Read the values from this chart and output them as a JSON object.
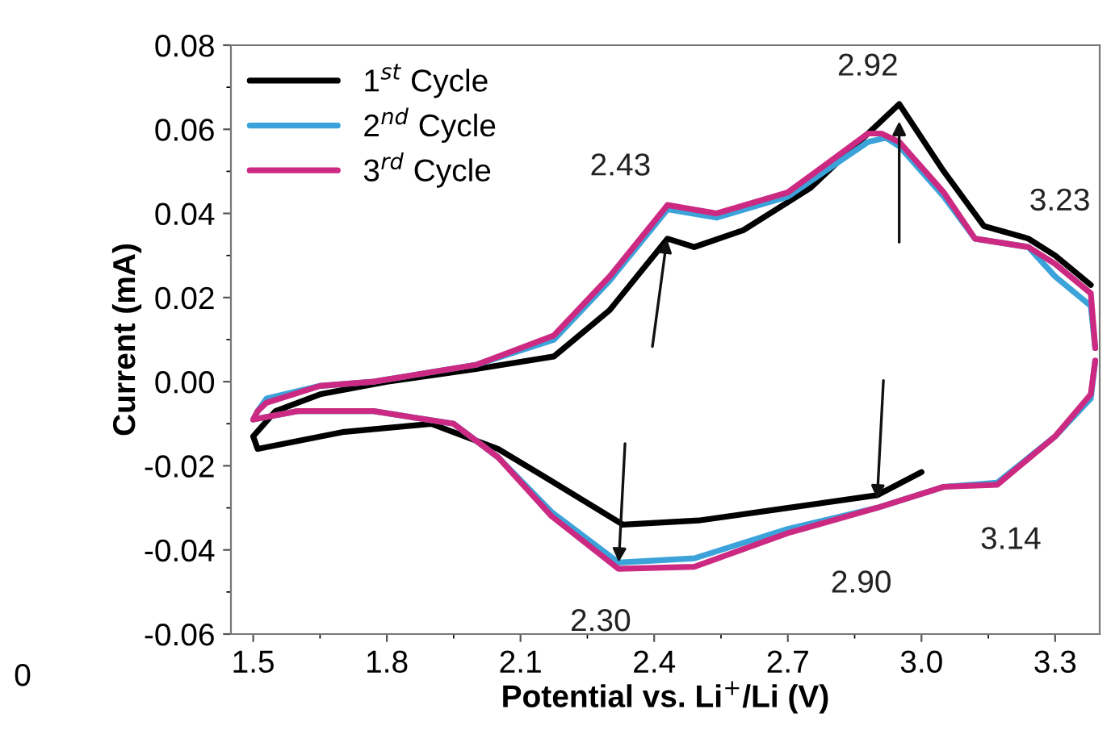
{
  "chart_data": {
    "type": "line",
    "xlabel": "Potential vs. Li$^{+}$/Li (V)",
    "ylabel": "Current (mA)",
    "xlim": [
      1.45,
      3.4
    ],
    "ylim": [
      -0.06,
      0.08
    ],
    "xticks": [
      {
        "value": 1.5,
        "label": "1.5"
      },
      {
        "value": 1.8,
        "label": "1.8"
      },
      {
        "value": 2.1,
        "label": "2.1"
      },
      {
        "value": 2.4,
        "label": "2.4"
      },
      {
        "value": 2.7,
        "label": "2.7"
      },
      {
        "value": 3.0,
        "label": "3.0"
      },
      {
        "value": 3.3,
        "label": "3.3"
      }
    ],
    "yticks": [
      {
        "value": -0.06,
        "label": "-0.06"
      },
      {
        "value": -0.04,
        "label": "-0.04"
      },
      {
        "value": -0.02,
        "label": "-0.02"
      },
      {
        "value": 0.0,
        "label": "0.00"
      },
      {
        "value": 0.02,
        "label": "0.02"
      },
      {
        "value": 0.04,
        "label": "0.04"
      },
      {
        "value": 0.06,
        "label": "0.06"
      },
      {
        "value": 0.08,
        "label": "0.08"
      }
    ],
    "legend": "top left",
    "grid": false,
    "marker": "none",
    "line_style": "solid",
    "series": [
      {
        "name": "1$^{st}$ Cycle",
        "color": "#000000",
        "x": [
          3.0,
          2.9,
          2.7,
          2.5,
          2.33,
          2.16,
          2.05,
          1.9,
          1.7,
          1.51,
          1.5,
          1.55,
          1.65,
          1.8,
          2.0,
          2.175,
          2.3,
          2.43,
          2.49,
          2.6,
          2.75,
          2.85,
          2.95,
          3.05,
          3.14,
          3.24,
          3.3,
          3.38
        ],
        "values": [
          -0.0215,
          -0.027,
          -0.03,
          -0.033,
          -0.034,
          -0.023,
          -0.016,
          -0.01,
          -0.012,
          -0.016,
          -0.013,
          -0.007,
          -0.003,
          0.0,
          0.003,
          0.006,
          0.017,
          0.034,
          0.032,
          0.036,
          0.046,
          0.056,
          0.066,
          0.05,
          0.037,
          0.034,
          0.03,
          0.023
        ]
      },
      {
        "name": "2$^{nd}$ Cycle",
        "color": "#3ba3d9",
        "x": [
          3.39,
          3.38,
          3.3,
          3.17,
          3.05,
          2.9,
          2.7,
          2.49,
          2.32,
          2.17,
          2.05,
          1.95,
          1.77,
          1.6,
          1.5,
          1.51,
          1.53,
          1.65,
          1.77,
          2.0,
          2.175,
          2.3,
          2.43,
          2.54,
          2.7,
          2.88,
          2.92,
          2.95,
          3.05,
          3.12,
          3.24,
          3.3,
          3.38,
          3.39
        ],
        "values": [
          0.005,
          -0.004,
          -0.013,
          -0.024,
          -0.025,
          -0.03,
          -0.035,
          -0.042,
          -0.043,
          -0.031,
          -0.018,
          -0.01,
          -0.007,
          -0.007,
          -0.009,
          -0.007,
          -0.004,
          -0.001,
          0.0,
          0.004,
          0.01,
          0.024,
          0.041,
          0.039,
          0.044,
          0.057,
          0.058,
          0.056,
          0.044,
          0.034,
          0.032,
          0.025,
          0.018,
          0.008
        ]
      },
      {
        "name": "3$^{rd}$ Cycle",
        "color": "#cc2a82",
        "x": [
          3.39,
          3.38,
          3.3,
          3.17,
          3.05,
          2.9,
          2.7,
          2.49,
          2.32,
          2.17,
          2.05,
          1.95,
          1.77,
          1.6,
          1.5,
          1.51,
          1.53,
          1.65,
          1.77,
          2.0,
          2.175,
          2.3,
          2.43,
          2.54,
          2.7,
          2.88,
          2.91,
          2.95,
          3.05,
          3.12,
          3.24,
          3.3,
          3.38,
          3.39
        ],
        "values": [
          0.005,
          -0.003,
          -0.013,
          -0.0245,
          -0.025,
          -0.03,
          -0.036,
          -0.044,
          -0.0445,
          -0.032,
          -0.018,
          -0.01,
          -0.007,
          -0.007,
          -0.009,
          -0.007,
          -0.005,
          -0.001,
          0.0,
          0.004,
          0.011,
          0.025,
          0.042,
          0.04,
          0.045,
          0.059,
          0.059,
          0.057,
          0.045,
          0.034,
          0.032,
          0.028,
          0.021,
          0.008
        ]
      }
    ],
    "annotations": [
      {
        "text": "2.43",
        "x": 2.43,
        "y": 0.035
      },
      {
        "text": "2.92",
        "x": 2.95,
        "y": 0.063
      },
      {
        "text": "3.23",
        "x": 3.24,
        "y": 0.032
      },
      {
        "text": "2.30",
        "x": 2.32,
        "y": -0.044
      },
      {
        "text": "2.90",
        "x": 2.9,
        "y": -0.029
      },
      {
        "text": "3.14",
        "x": 3.14,
        "y": -0.0245
      },
      "0"
    ]
  }
}
